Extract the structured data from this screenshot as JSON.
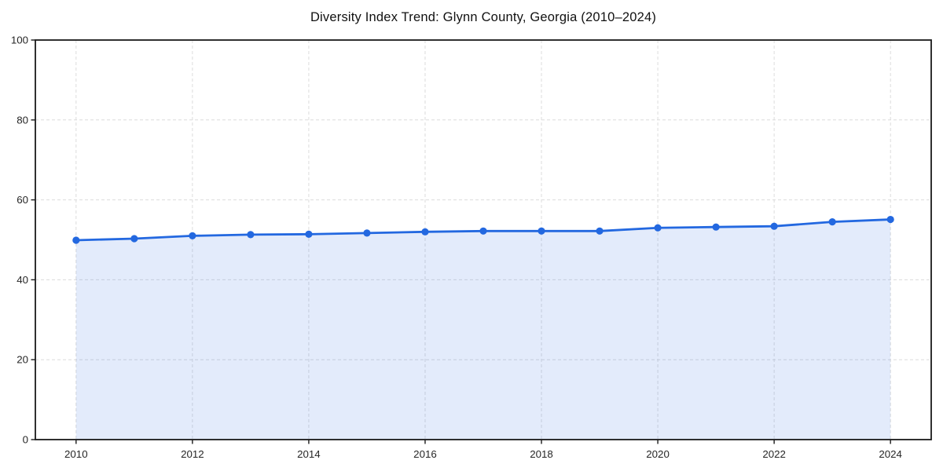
{
  "page": {
    "background": "#ffffff"
  },
  "chart_data": {
    "type": "line",
    "title": "Diversity Index Trend: Glynn County, Georgia (2010–2024)",
    "series": [
      {
        "name": "Diversity Index",
        "x": [
          2010,
          2011,
          2012,
          2013,
          2014,
          2015,
          2016,
          2017,
          2018,
          2019,
          2020,
          2021,
          2022,
          2023,
          2024
        ],
        "values": [
          49.9,
          50.3,
          51.0,
          51.3,
          51.4,
          51.7,
          52.0,
          52.2,
          52.2,
          52.2,
          53.0,
          53.2,
          53.4,
          54.5,
          55.1
        ]
      }
    ],
    "xlabel": "",
    "ylabel": "",
    "xlim": [
      2009.3,
      2024.7
    ],
    "ylim": [
      0,
      100
    ],
    "xticks": [
      2010,
      2012,
      2014,
      2016,
      2018,
      2020,
      2022,
      2024
    ],
    "yticks": [
      0,
      20,
      40,
      60,
      80,
      100
    ],
    "grid": true,
    "grid_style": "dashed",
    "legend": false,
    "marker": "circle",
    "area_fill": true,
    "colors": {
      "line": "#2368e0",
      "marker": "#2368e0",
      "area_fill": "rgba(35, 104, 224, 0.13)",
      "grid": "#dcdcdc",
      "axis": "#1a1a1a",
      "tick_text": "#262626",
      "background": "#ffffff"
    }
  }
}
